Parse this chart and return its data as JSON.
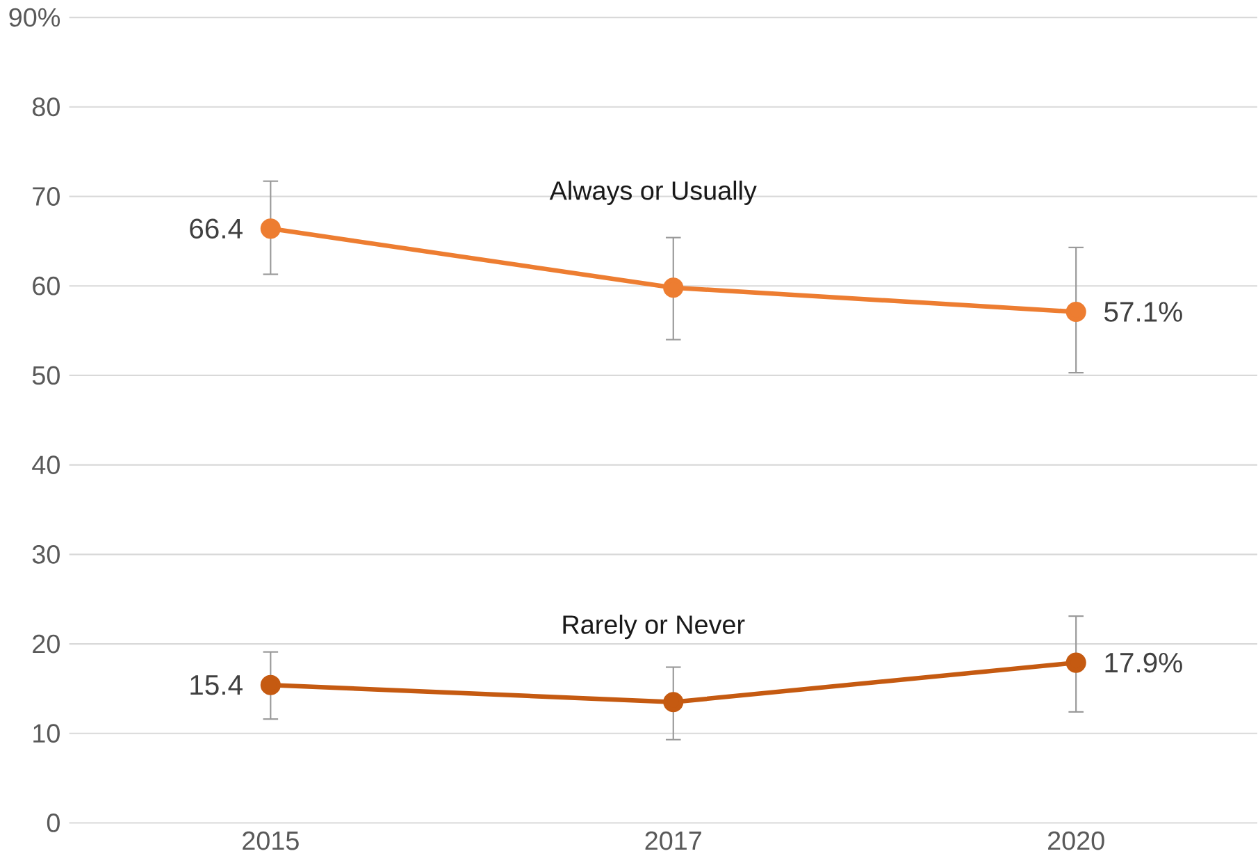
{
  "chart_data": {
    "type": "line",
    "categories": [
      "2015",
      "2017",
      "2020"
    ],
    "series": [
      {
        "name": "Always or Usually",
        "color": "#ed7d31",
        "values": [
          66.4,
          59.8,
          57.1
        ],
        "errors": [
          [
            61.3,
            71.7
          ],
          [
            54.0,
            65.4
          ],
          [
            50.3,
            64.3
          ]
        ],
        "value_labels": [
          "66.4",
          null,
          "57.1%"
        ]
      },
      {
        "name": "Rarely or Never",
        "color": "#c55a11",
        "values": [
          15.4,
          13.5,
          17.9
        ],
        "errors": [
          [
            11.6,
            19.1
          ],
          [
            9.3,
            17.4
          ],
          [
            12.4,
            23.1
          ]
        ],
        "value_labels": [
          "15.4",
          null,
          "17.9%"
        ]
      }
    ],
    "ylim": [
      0,
      90
    ],
    "yticks": [
      0,
      10,
      20,
      30,
      40,
      50,
      60,
      70,
      80,
      {
        "value": 90,
        "label": "90%"
      }
    ],
    "grid": "y",
    "marker": "circle",
    "line_style": "solid"
  }
}
